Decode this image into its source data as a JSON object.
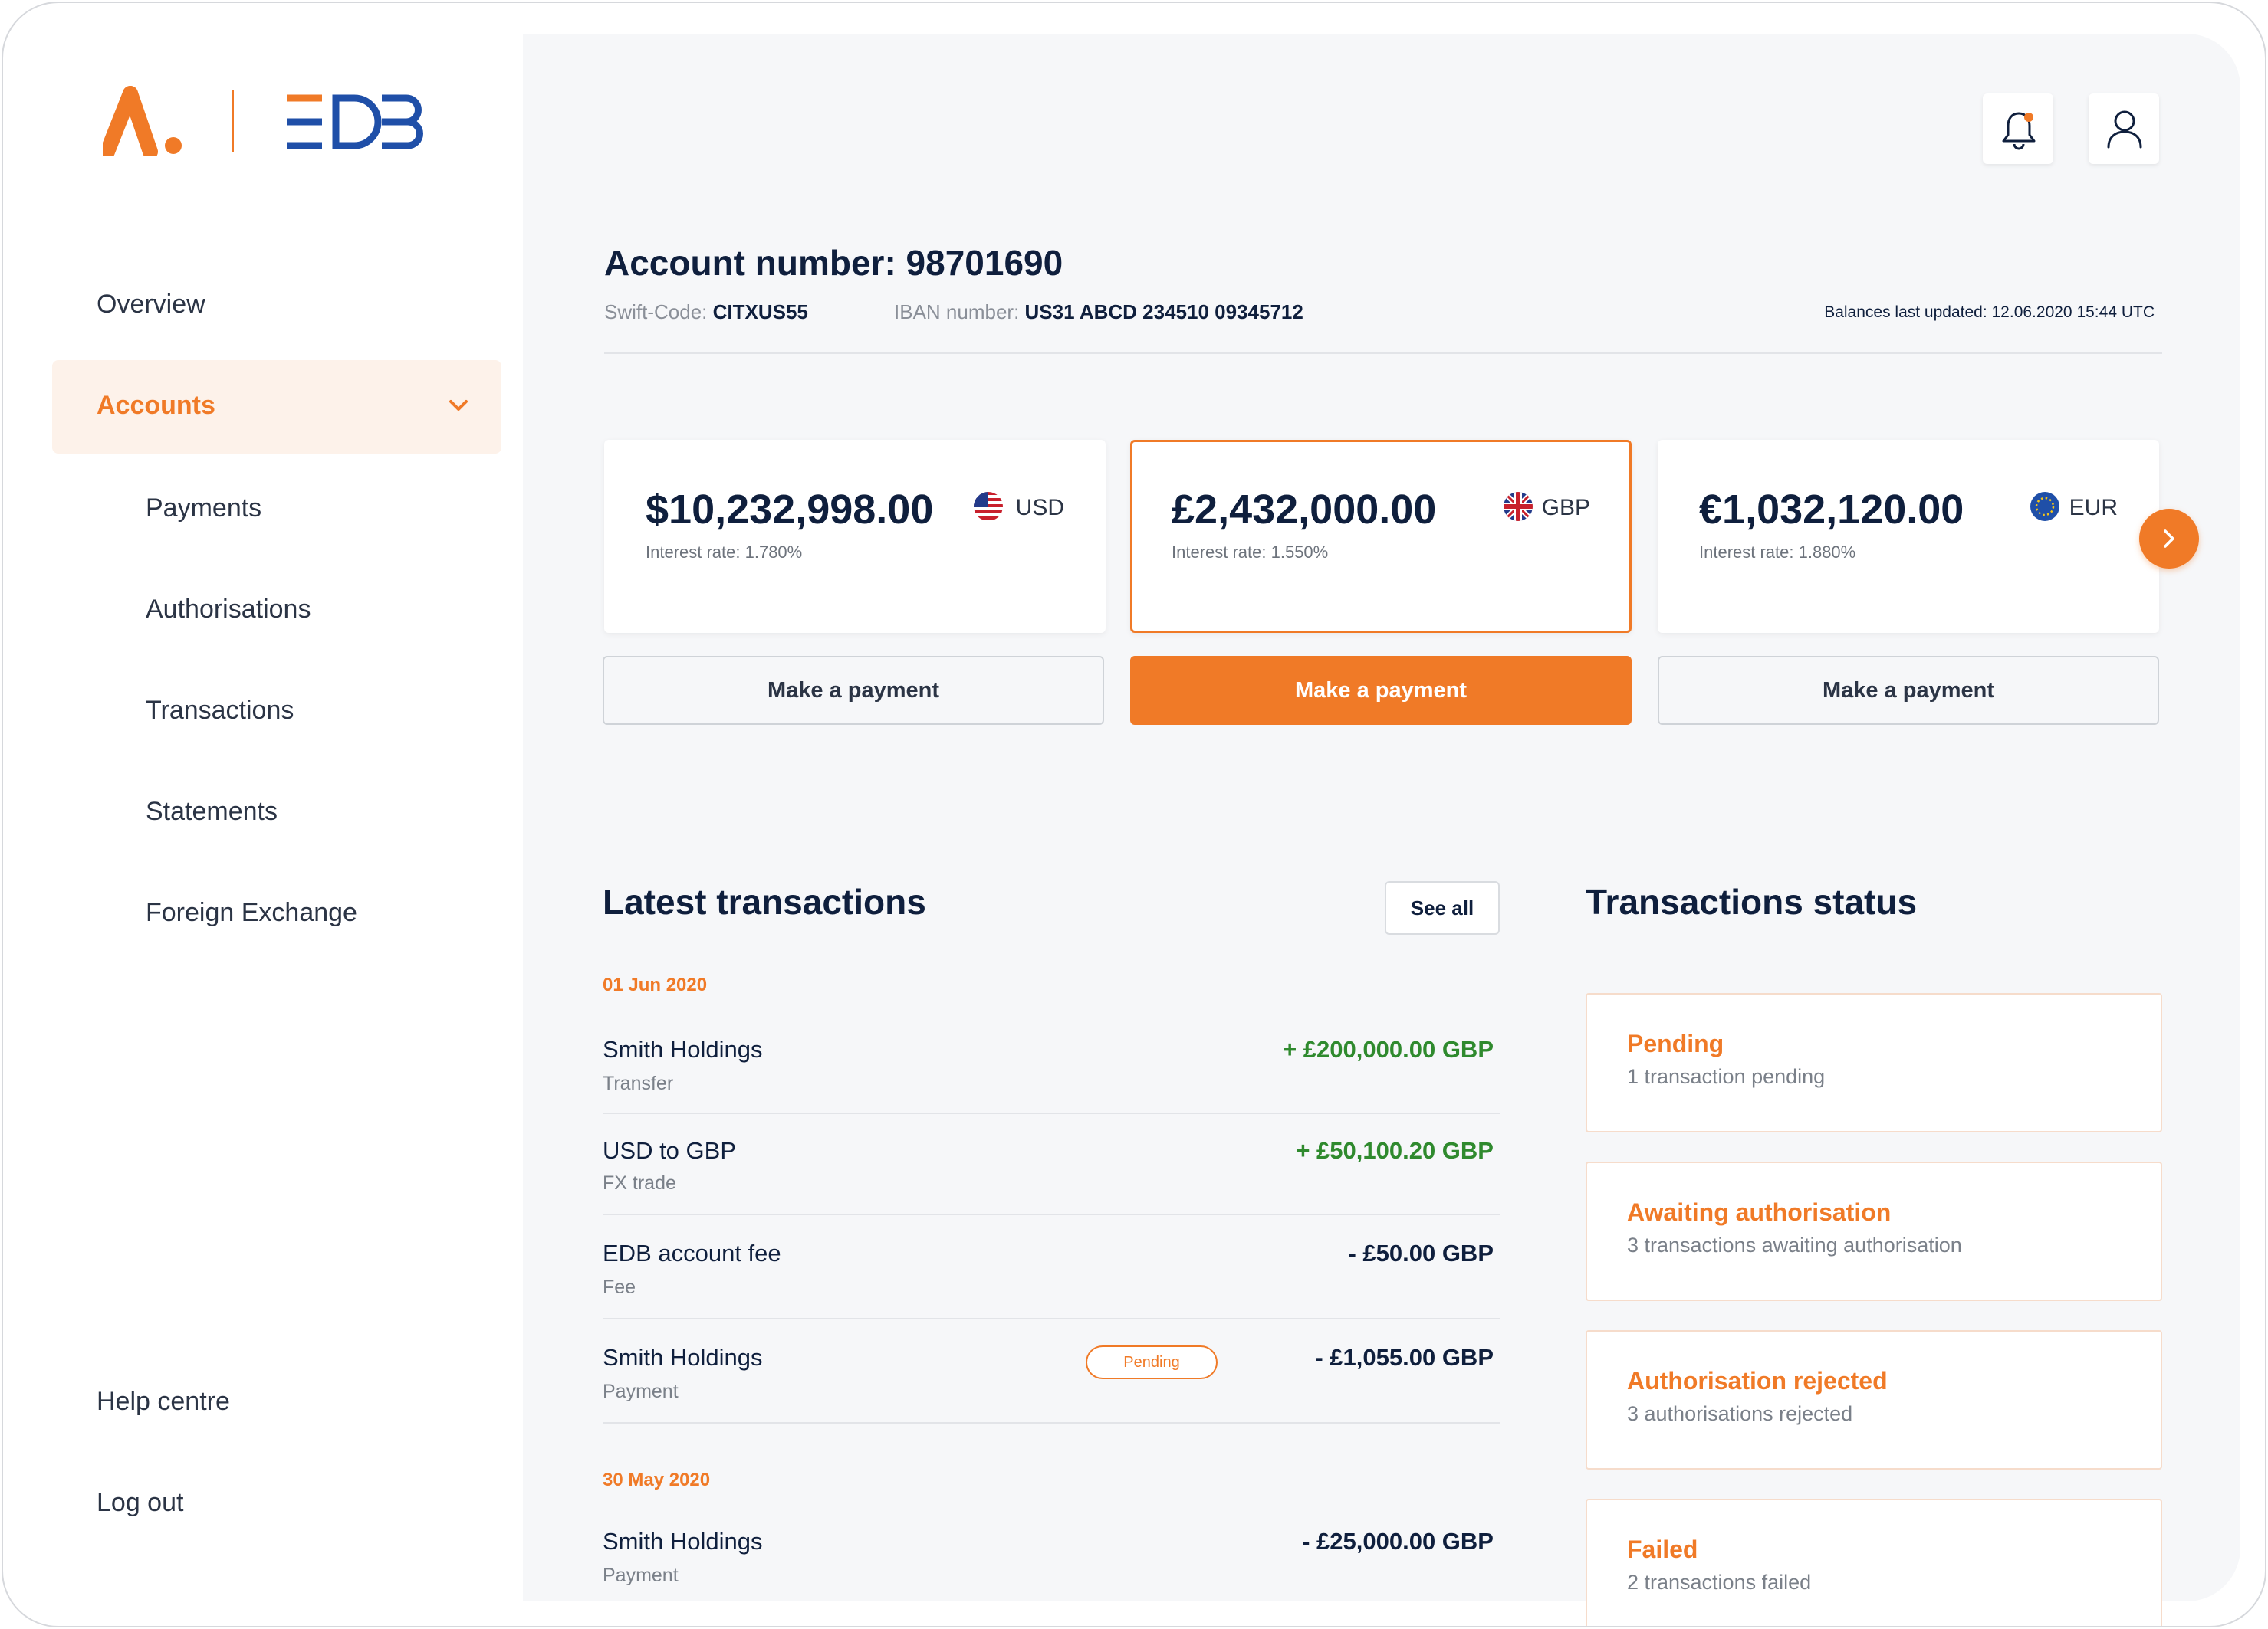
{
  "brand": {
    "logo_text": "EDB",
    "accent": "#f07a27",
    "navy": "#0f1f3d",
    "logo_blue": "#1f4fa8"
  },
  "sidebar": {
    "items": [
      {
        "label": "Overview"
      },
      {
        "label": "Accounts",
        "active": true
      },
      {
        "label": "Payments"
      },
      {
        "label": "Authorisations"
      },
      {
        "label": "Transactions"
      },
      {
        "label": "Statements"
      },
      {
        "label": "Foreign Exchange"
      }
    ],
    "footer": [
      {
        "label": "Help centre"
      },
      {
        "label": "Log out"
      }
    ]
  },
  "header": {
    "icons": [
      "bell-icon",
      "user-icon"
    ]
  },
  "account": {
    "title": "Account number: 98701690",
    "swift_label": "Swift-Code:",
    "swift_value": "CITXUS55",
    "iban_label": "IBAN number:",
    "iban_value": "US31 ABCD 234510 09345712",
    "updated": "Balances last updated:  12.06.2020  15:44 UTC"
  },
  "balances": [
    {
      "amount": "$10,232,998.00",
      "currency": "USD",
      "rate": "Interest rate: 1.780%",
      "button": "Make a payment",
      "flag": "us-flag-icon"
    },
    {
      "amount": "£2,432,000.00",
      "currency": "GBP",
      "rate": "Interest rate: 1.550%",
      "button": "Make a payment",
      "flag": "uk-flag-icon",
      "selected": true
    },
    {
      "amount": "€1,032,120.00",
      "currency": "EUR",
      "rate": "Interest rate: 1.880%",
      "button": "Make a payment",
      "flag": "eu-flag-icon"
    }
  ],
  "latest": {
    "title": "Latest transactions",
    "see_all": "See all",
    "groups": [
      {
        "date": "01 Jun 2020",
        "rows": [
          {
            "name": "Smith Holdings",
            "type": "Transfer",
            "amount": "+ £200,000.00 GBP"
          },
          {
            "name": "USD to GBP",
            "type": "FX trade",
            "amount": "+ £50,100.20 GBP"
          },
          {
            "name": "EDB account fee",
            "type": "Fee",
            "amount": "- £50.00 GBP"
          },
          {
            "name": "Smith Holdings",
            "type": "Payment",
            "amount": "- £1,055.00 GBP",
            "badge": "Pending"
          }
        ]
      },
      {
        "date": "30 May 2020",
        "rows": [
          {
            "name": "Smith Holdings",
            "type": "Payment",
            "amount": "- £25,000.00 GBP"
          }
        ]
      }
    ]
  },
  "status": {
    "title": "Transactions status",
    "cards": [
      {
        "title": "Pending",
        "desc": "1 transaction pending"
      },
      {
        "title": "Awaiting authorisation",
        "desc": "3 transactions awaiting authorisation"
      },
      {
        "title": "Authorisation rejected",
        "desc": "3 authorisations rejected"
      },
      {
        "title": "Failed",
        "desc": "2 transactions failed"
      }
    ]
  }
}
